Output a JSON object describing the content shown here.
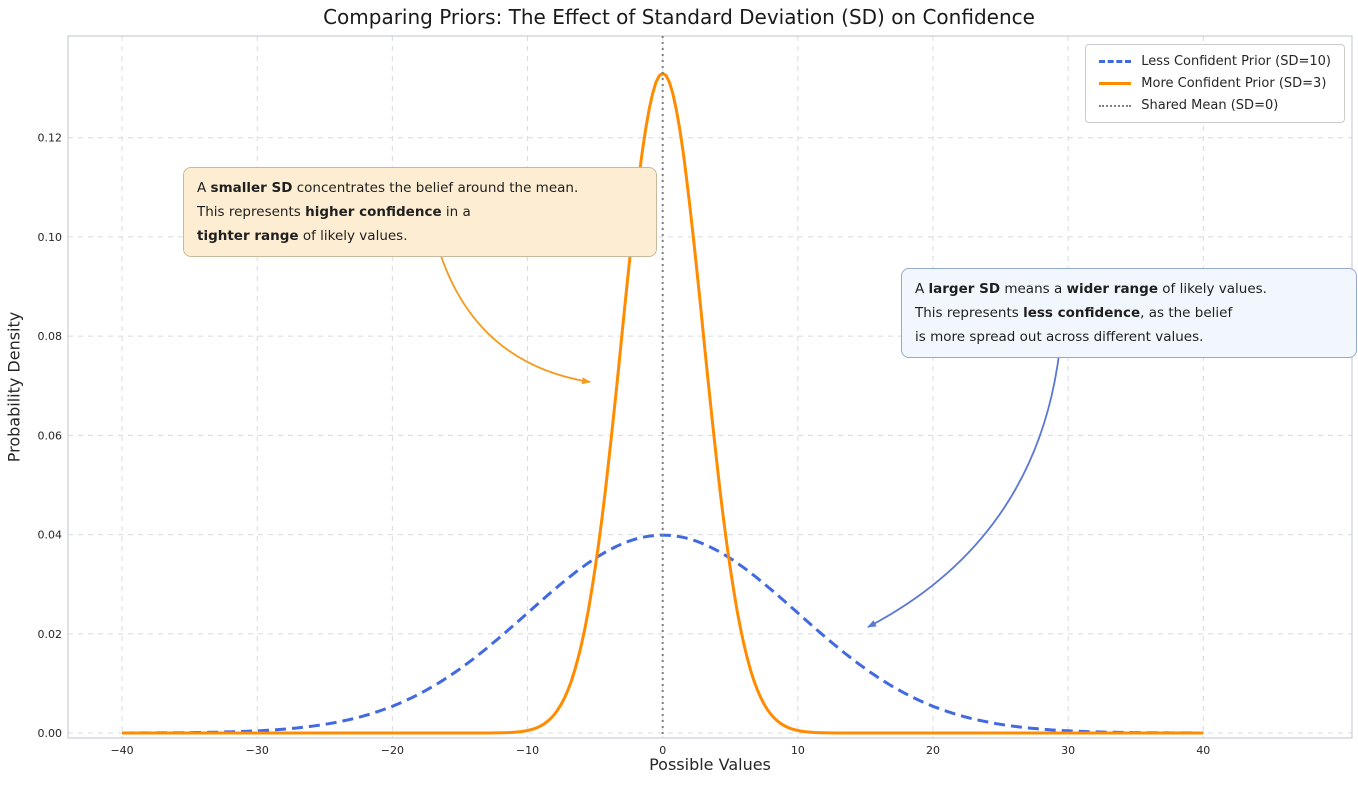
{
  "chart_data": {
    "type": "line",
    "title": "Comparing Priors: The Effect of Standard Deviation (SD) on Confidence",
    "xlabel": "Possible Values",
    "ylabel": "Probability Density",
    "xlim": [
      -44,
      51
    ],
    "ylim": [
      -0.001,
      0.1405
    ],
    "x_ticks": [
      -40,
      -30,
      -20,
      -10,
      0,
      10,
      20,
      30,
      40
    ],
    "y_ticks": [
      0,
      0.02,
      0.04,
      0.06,
      0.08,
      0.1,
      0.12
    ],
    "grid": true,
    "legend_position": "upper right",
    "series": [
      {
        "name": "Less Confident Prior (SD=10)",
        "distribution": "normal",
        "mean": 0,
        "sd": 10,
        "peak_density": 0.0399,
        "x_range": [
          -40,
          40
        ],
        "color": "#4169e1",
        "line_style": "dashed",
        "line_width": 3
      },
      {
        "name": "More Confident Prior (SD=3)",
        "distribution": "normal",
        "mean": 0,
        "sd": 3,
        "peak_density": 0.133,
        "x_range": [
          -40,
          40
        ],
        "color": "#ff8c00",
        "line_style": "solid",
        "line_width": 3
      },
      {
        "name": "Shared Mean (SD=0)",
        "distribution": "vline",
        "x": 0,
        "color": "#808080",
        "line_style": "dotted",
        "line_width": 2
      }
    ],
    "annotations": [
      {
        "name": "smaller-sd-note",
        "lines": [
          [
            {
              "t": "A "
            },
            {
              "t": "smaller SD",
              "b": true
            },
            {
              "t": " concentrates the belief around the mean."
            }
          ],
          [
            {
              "t": "This represents "
            },
            {
              "t": "higher confidence",
              "b": true
            },
            {
              "t": " in a"
            }
          ],
          [
            {
              "t": "tighter range",
              "b": true
            },
            {
              "t": " of likely values."
            }
          ]
        ],
        "box_color": "#fdeed3",
        "border_color": "#c9b99c",
        "arrow_color": "#f59a1e"
      },
      {
        "name": "larger-sd-note",
        "lines": [
          [
            {
              "t": "A "
            },
            {
              "t": "larger SD",
              "b": true
            },
            {
              "t": " means a "
            },
            {
              "t": "wider range",
              "b": true
            },
            {
              "t": " of likely values."
            }
          ],
          [
            {
              "t": "This represents "
            },
            {
              "t": "less confidence",
              "b": true
            },
            {
              "t": ", as the belief"
            }
          ],
          [
            {
              "t": "is more spread out across different values."
            }
          ]
        ],
        "box_color": "#f2f7fd",
        "border_color": "#93a9cf",
        "arrow_color": "#5b79d4"
      }
    ]
  }
}
